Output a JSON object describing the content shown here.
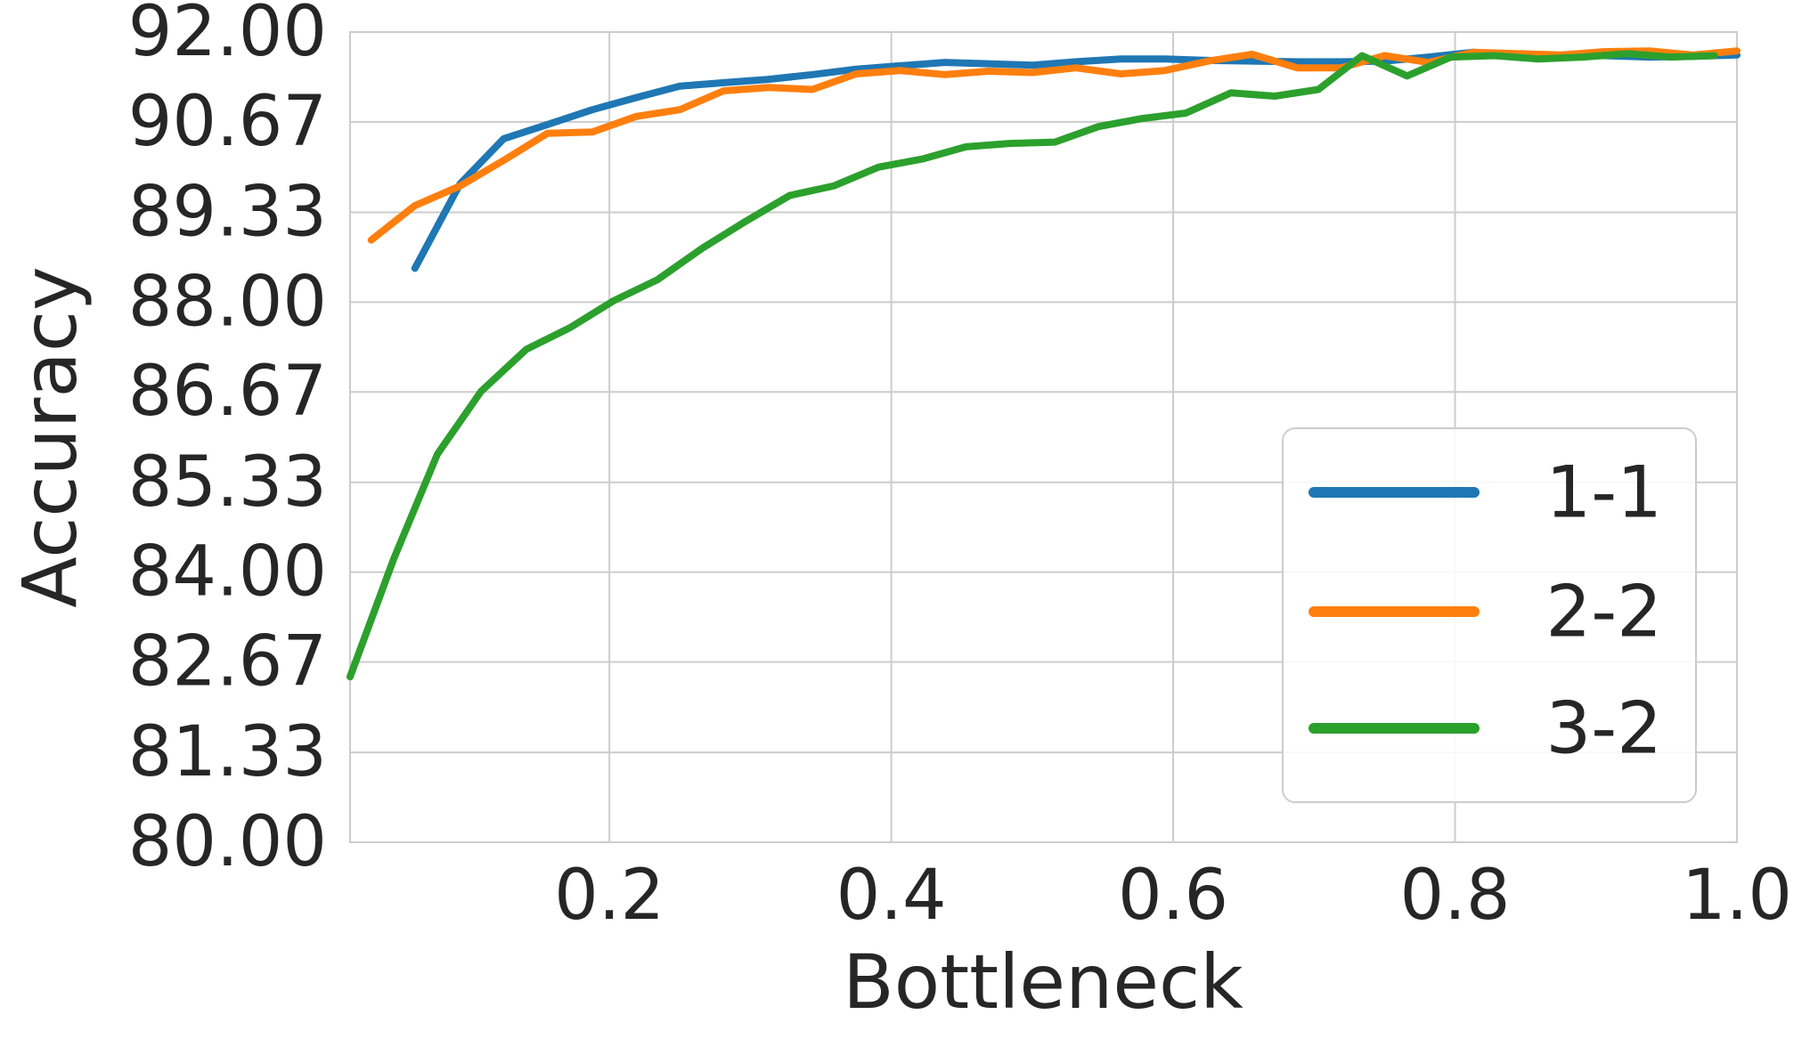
{
  "chart_data": {
    "type": "line",
    "title": "",
    "xlabel": "Bottleneck",
    "ylabel": "Accuracy",
    "xlim": [
      0.016,
      1.0
    ],
    "ylim": [
      80.0,
      92.0
    ],
    "x_ticks": [
      0.2,
      0.4,
      0.6,
      0.8,
      1.0
    ],
    "x_tick_labels": [
      "0.2",
      "0.4",
      "0.6",
      "0.8",
      "1.0"
    ],
    "y_ticks": [
      80.0,
      81.33,
      82.67,
      84.0,
      85.33,
      86.67,
      88.0,
      89.33,
      90.67,
      92.0
    ],
    "y_tick_labels": [
      "80.00",
      "81.33",
      "82.67",
      "84.00",
      "85.33",
      "86.67",
      "88.00",
      "89.33",
      "90.67",
      "92.00"
    ],
    "grid": true,
    "legend_position": "lower-right",
    "series": [
      {
        "name": "1-1",
        "color": "#1f77b4",
        "x": [
          0.062,
          0.094,
          0.125,
          0.156,
          0.188,
          0.219,
          0.25,
          0.281,
          0.313,
          0.344,
          0.375,
          0.406,
          0.438,
          0.469,
          0.5,
          0.531,
          0.563,
          0.594,
          0.625,
          0.656,
          0.688,
          0.719,
          0.75,
          0.781,
          0.813,
          0.844,
          0.875,
          0.906,
          0.938,
          0.969,
          1.0
        ],
        "y": [
          88.5,
          89.75,
          90.42,
          90.63,
          90.85,
          91.03,
          91.2,
          91.25,
          91.3,
          91.37,
          91.45,
          91.5,
          91.55,
          91.53,
          91.51,
          91.56,
          91.6,
          91.6,
          91.58,
          91.57,
          91.56,
          91.56,
          91.57,
          91.63,
          91.7,
          91.67,
          91.65,
          91.65,
          91.63,
          91.64,
          91.66
        ]
      },
      {
        "name": "2-2",
        "color": "#ff7f0e",
        "x": [
          0.031,
          0.062,
          0.094,
          0.125,
          0.156,
          0.188,
          0.219,
          0.25,
          0.281,
          0.313,
          0.344,
          0.375,
          0.406,
          0.438,
          0.469,
          0.5,
          0.531,
          0.563,
          0.594,
          0.625,
          0.656,
          0.688,
          0.719,
          0.75,
          0.781,
          0.813,
          0.844,
          0.875,
          0.906,
          0.938,
          0.969,
          1.0
        ],
        "y": [
          88.92,
          89.43,
          89.72,
          90.1,
          90.5,
          90.52,
          90.75,
          90.85,
          91.13,
          91.18,
          91.15,
          91.38,
          91.43,
          91.37,
          91.42,
          91.4,
          91.47,
          91.38,
          91.43,
          91.57,
          91.67,
          91.47,
          91.47,
          91.65,
          91.55,
          91.7,
          91.68,
          91.66,
          91.71,
          91.72,
          91.66,
          91.72
        ]
      },
      {
        "name": "3-2",
        "color": "#2ca02c",
        "x": [
          0.016,
          0.047,
          0.078,
          0.109,
          0.141,
          0.172,
          0.203,
          0.234,
          0.266,
          0.297,
          0.328,
          0.359,
          0.391,
          0.422,
          0.453,
          0.484,
          0.516,
          0.547,
          0.578,
          0.609,
          0.641,
          0.672,
          0.703,
          0.734,
          0.766,
          0.797,
          0.828,
          0.859,
          0.891,
          0.922,
          0.953,
          0.984
        ],
        "y": [
          82.45,
          84.2,
          85.75,
          86.68,
          87.3,
          87.62,
          88.02,
          88.33,
          88.8,
          89.2,
          89.58,
          89.72,
          90.0,
          90.12,
          90.3,
          90.35,
          90.37,
          90.6,
          90.72,
          90.8,
          91.1,
          91.05,
          91.15,
          91.65,
          91.35,
          91.63,
          91.65,
          91.6,
          91.63,
          91.68,
          91.63,
          91.65
        ]
      }
    ]
  }
}
